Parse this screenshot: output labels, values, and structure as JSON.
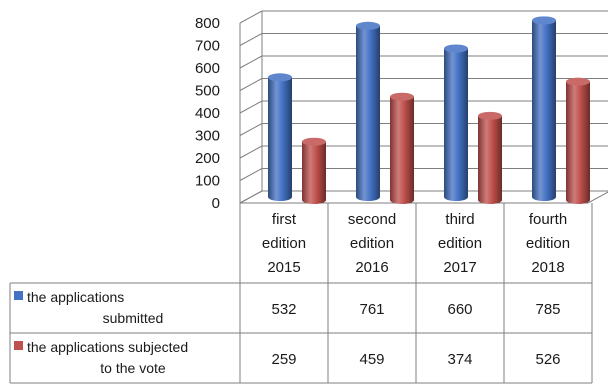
{
  "chart_data": {
    "type": "bar",
    "categories": [
      [
        "first",
        "edition",
        "2015"
      ],
      [
        "second",
        "edition",
        "2016"
      ],
      [
        "third",
        "edition",
        "2017"
      ],
      [
        "fourth",
        "edition",
        "2018"
      ]
    ],
    "series": [
      {
        "name": [
          "the applications",
          "submitted"
        ],
        "color": "#4472C4",
        "values": [
          532,
          761,
          660,
          785
        ],
        "value_labels": [
          "532",
          "761",
          "660",
          "785"
        ]
      },
      {
        "name": [
          "the applications subjected",
          "to the vote"
        ],
        "color": "#C0504D",
        "values": [
          259,
          459,
          374,
          526
        ],
        "value_labels": [
          "259",
          "459",
          "374",
          "526"
        ]
      }
    ],
    "ylim": [
      0,
      800
    ],
    "yticks": [
      "0",
      "100",
      "200",
      "300",
      "400",
      "500",
      "600",
      "700",
      "800"
    ],
    "grid": true,
    "legend": "table-left",
    "data_table": true,
    "style": "3d-cylinder"
  }
}
